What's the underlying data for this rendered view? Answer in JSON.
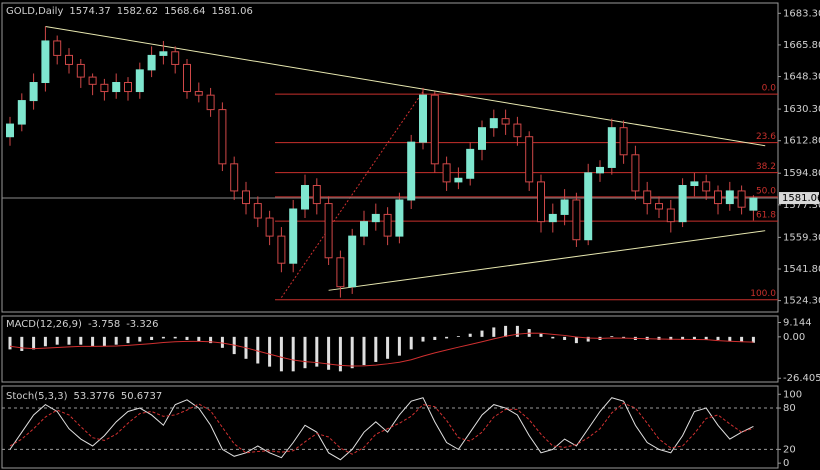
{
  "chart_data": [
    {
      "type": "candlestick",
      "title": "GOLD,Daily",
      "open": [
        1615,
        1622,
        1635,
        1645,
        1668,
        1660,
        1655,
        1648,
        1644,
        1640,
        1645,
        1640,
        1652,
        1660,
        1662,
        1655,
        1640,
        1638,
        1630,
        1600,
        1585,
        1578,
        1570,
        1560,
        1545,
        1575,
        1588,
        1578,
        1548,
        1532,
        1560,
        1568,
        1572,
        1560,
        1580,
        1612,
        1638,
        1600,
        1590,
        1592,
        1608,
        1620,
        1625,
        1622,
        1615,
        1590,
        1568,
        1572,
        1580,
        1558,
        1595,
        1598,
        1620,
        1605,
        1585,
        1578,
        1575,
        1568,
        1588,
        1590,
        1585,
        1578,
        1585,
        1574.37
      ],
      "high": [
        1626,
        1639,
        1650,
        1676,
        1671,
        1664,
        1658,
        1650,
        1647,
        1650,
        1648,
        1656,
        1665,
        1668,
        1665,
        1658,
        1645,
        1642,
        1634,
        1604,
        1590,
        1582,
        1574,
        1565,
        1580,
        1594,
        1592,
        1582,
        1552,
        1564,
        1574,
        1578,
        1576,
        1584,
        1616,
        1642,
        1640,
        1604,
        1598,
        1612,
        1624,
        1630,
        1630,
        1626,
        1618,
        1594,
        1578,
        1586,
        1584,
        1600,
        1602,
        1625,
        1624,
        1610,
        1590,
        1582,
        1580,
        1592,
        1595,
        1594,
        1588,
        1590,
        1588,
        1582.62
      ],
      "low": [
        1610,
        1618,
        1630,
        1640,
        1655,
        1650,
        1642,
        1638,
        1635,
        1636,
        1635,
        1636,
        1648,
        1655,
        1650,
        1636,
        1634,
        1626,
        1596,
        1580,
        1572,
        1565,
        1555,
        1540,
        1540,
        1570,
        1572,
        1544,
        1526,
        1528,
        1555,
        1563,
        1555,
        1556,
        1575,
        1608,
        1595,
        1585,
        1586,
        1588,
        1602,
        1615,
        1616,
        1610,
        1585,
        1562,
        1562,
        1566,
        1554,
        1555,
        1590,
        1594,
        1600,
        1580,
        1572,
        1570,
        1562,
        1565,
        1582,
        1580,
        1572,
        1574,
        1572,
        1568.64
      ],
      "close": [
        1622,
        1635,
        1645,
        1668,
        1660,
        1655,
        1648,
        1644,
        1640,
        1645,
        1640,
        1652,
        1660,
        1662,
        1655,
        1640,
        1638,
        1630,
        1600,
        1585,
        1578,
        1570,
        1560,
        1545,
        1575,
        1588,
        1578,
        1548,
        1532,
        1560,
        1568,
        1572,
        1560,
        1580,
        1612,
        1638,
        1600,
        1590,
        1592,
        1608,
        1620,
        1625,
        1622,
        1615,
        1590,
        1568,
        1572,
        1580,
        1558,
        1595,
        1598,
        1620,
        1605,
        1585,
        1578,
        1575,
        1568,
        1588,
        1590,
        1585,
        1578,
        1585,
        1576,
        1581.06
      ],
      "up_color": "#7fe6cf",
      "down_color": "#000000",
      "wick_color": "#d04848",
      "ylim": [
        1518,
        1689
      ],
      "yticks": [
        {
          "value": 1683.3,
          "label": "1683.30"
        },
        {
          "value": 1665.8,
          "label": "1665.80"
        },
        {
          "value": 1648.3,
          "label": "1648.30"
        },
        {
          "value": 1630.3,
          "label": "1630.30"
        },
        {
          "value": 1612.8,
          "label": "1612.80"
        },
        {
          "value": 1594.8,
          "label": "1594.80"
        },
        {
          "value": 1577.3,
          "label": "1577.30"
        },
        {
          "value": 1559.3,
          "label": "1559.30"
        },
        {
          "value": 1541.8,
          "label": "1541.80"
        },
        {
          "value": 1524.3,
          "label": "1524.30"
        }
      ],
      "fibonacci": {
        "high": 1638.6,
        "low": 1524.8,
        "color": "#c8302c",
        "levels": [
          {
            "value": 0,
            "label": "0.0"
          },
          23.6,
          38.2,
          {
            "value": 50,
            "label": "50.0"
          },
          61.8,
          {
            "value": 100,
            "label": "100.0"
          }
        ]
      },
      "trendlines": [
        {
          "x": [
            3,
            64
          ],
          "y": [
            1676,
            1610
          ],
          "color": "#e8e8b0"
        },
        {
          "x": [
            27,
            64
          ],
          "y": [
            1530,
            1563
          ],
          "color": "#e8e8b0"
        },
        {
          "x": [
            23,
            35
          ],
          "y": [
            1526,
            1640
          ],
          "color": "#d03030",
          "dash": true
        }
      ]
    },
    {
      "type": "macd",
      "title": "MACD(12,26,9)",
      "histogram": {
        "color": "#e0e0e0",
        "values": [
          -8,
          -9,
          -8,
          -6,
          -5,
          -5,
          -5,
          -6,
          -6,
          -5,
          -4,
          -3,
          -2,
          -1,
          -1,
          -2,
          -3,
          -4,
          -7,
          -11,
          -14,
          -17,
          -19,
          -22,
          -22,
          -20,
          -19,
          -21,
          -22,
          -20,
          -18,
          -16,
          -14,
          -12,
          -8,
          -3,
          -2,
          -1,
          0.5,
          2,
          4,
          6,
          7,
          7,
          5,
          2,
          -1,
          -2,
          -4,
          -3,
          -2,
          0.5,
          -1,
          -2,
          -2,
          -2,
          -2,
          -2,
          -2,
          -2,
          -2,
          -3,
          -3,
          -3.758
        ]
      },
      "signal": {
        "color": "#d03030",
        "values": [
          -6,
          -7,
          -7.5,
          -7.2,
          -6.8,
          -6.4,
          -6.1,
          -6.1,
          -6,
          -5.8,
          -5.4,
          -4.9,
          -4.3,
          -3.6,
          -3.1,
          -2.9,
          -2.9,
          -3.1,
          -3.9,
          -5.3,
          -7,
          -9,
          -11,
          -13,
          -14.8,
          -15.8,
          -16.4,
          -17.3,
          -18.2,
          -18.6,
          -18.5,
          -18,
          -17.2,
          -16.2,
          -14.6,
          -12.3,
          -10.2,
          -8.4,
          -6.6,
          -4.9,
          -3.1,
          -1.3,
          0.4,
          1.7,
          2.4,
          2.3,
          1.6,
          0.9,
          -0.1,
          -0.7,
          -1,
          -0.7,
          -0.8,
          -1,
          -1.2,
          -1.4,
          -1.5,
          -1.6,
          -1.7,
          -1.8,
          -2.4,
          -2.8,
          -3.1,
          -3.326
        ]
      },
      "ylim": [
        -28.8,
        13.3
      ],
      "yticks": [
        9.144,
        {
          "value": 0,
          "label": "0.00"
        },
        -26.405
      ]
    },
    {
      "type": "stochastic",
      "title": "Stoch(5,3,3)",
      "series": [
        {
          "color": "#e0e0e0",
          "values": [
            20,
            45,
            70,
            85,
            75,
            50,
            35,
            25,
            40,
            60,
            75,
            80,
            70,
            55,
            85,
            92,
            80,
            55,
            20,
            10,
            15,
            25,
            15,
            8,
            30,
            55,
            45,
            15,
            5,
            20,
            45,
            60,
            45,
            70,
            90,
            95,
            60,
            30,
            20,
            45,
            70,
            85,
            80,
            70,
            40,
            15,
            20,
            35,
            25,
            50,
            75,
            95,
            90,
            55,
            30,
            20,
            15,
            40,
            75,
            80,
            55,
            35,
            45,
            53.3776
          ]
        },
        {
          "color": "#d03030",
          "dash": true,
          "values": [
            25,
            35,
            50,
            67,
            77,
            70,
            53,
            37,
            33,
            42,
            58,
            72,
            75,
            68,
            70,
            77,
            86,
            76,
            52,
            28,
            15,
            17,
            18,
            16,
            18,
            31,
            43,
            38,
            22,
            13,
            23,
            42,
            50,
            58,
            68,
            85,
            82,
            62,
            37,
            32,
            45,
            67,
            78,
            78,
            63,
            42,
            25,
            23,
            27,
            37,
            50,
            73,
            87,
            80,
            58,
            35,
            22,
            25,
            43,
            65,
            70,
            57,
            45,
            50.6737
          ]
        }
      ],
      "levels": [
        80,
        20
      ],
      "ylim": [
        -7,
        112
      ],
      "yticks": [
        100,
        80,
        20,
        0
      ]
    }
  ]
}
